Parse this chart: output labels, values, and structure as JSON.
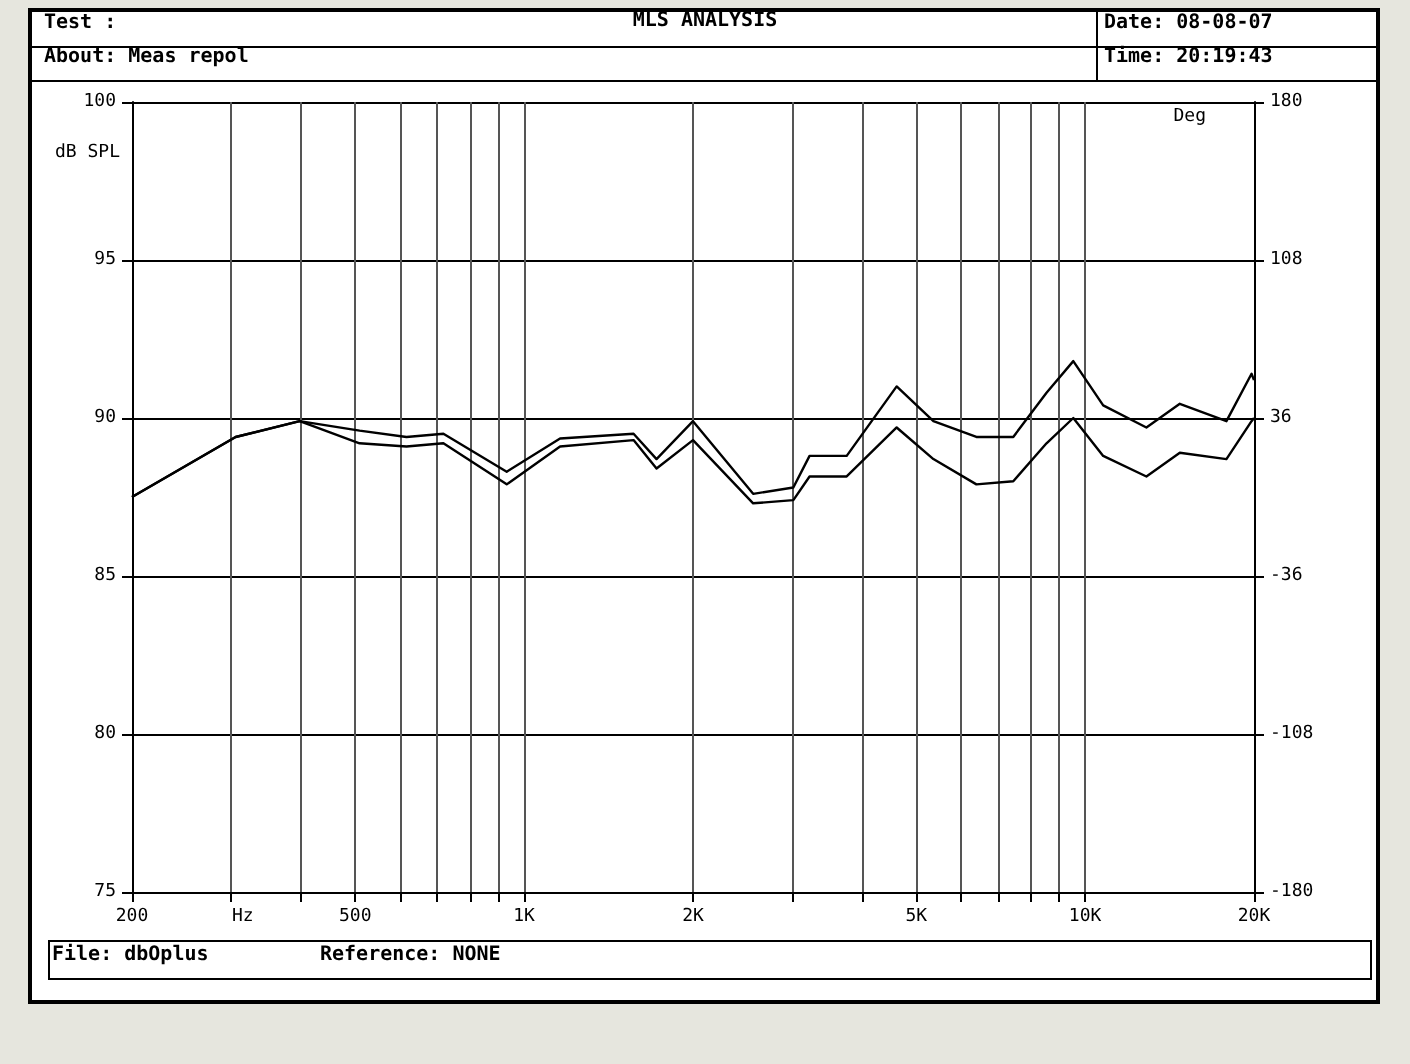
{
  "chart_data": {
    "type": "line",
    "title": "MLS ANALYSIS",
    "annotations": [
      "Test :",
      "About:   Meas repol",
      "Date: 08-08-07",
      "Time: 20:19:43",
      "File: dbOplus",
      "Reference: NONE"
    ],
    "ylabel": "dB SPL",
    "xlabel": "Hz",
    "y2label": "Deg",
    "x": [
      200,
      306,
      398,
      509,
      617,
      718,
      931,
      1159,
      1567,
      1722,
      2000,
      2560,
      3019,
      3227,
      3758,
      4614,
      5365,
      6400,
      7446,
      8535,
      9526,
      10770,
      12860,
      14750,
      17860,
      19800,
      20000
    ],
    "series": [
      {
        "color": "#000000",
        "values": [
          87.5,
          89.4,
          89.9,
          89.6,
          89.4,
          89.5,
          88.3,
          89.35,
          89.5,
          88.7,
          89.9,
          87.6,
          87.8,
          88.8,
          88.8,
          91.0,
          89.9,
          89.4,
          89.4,
          90.8,
          91.8,
          90.4,
          89.7,
          90.45,
          89.9,
          91.4,
          91.2
        ]
      },
      {
        "color": "#000000",
        "values": [
          87.5,
          89.4,
          89.9,
          89.2,
          89.1,
          89.2,
          87.9,
          89.1,
          89.3,
          88.4,
          89.3,
          87.3,
          87.4,
          88.15,
          88.15,
          89.7,
          88.7,
          87.9,
          88.0,
          89.2,
          90.0,
          88.8,
          88.15,
          88.9,
          88.7,
          89.9,
          90.0
        ]
      }
    ],
    "log": "x",
    "xlim": [
      200,
      20000
    ],
    "xticks": [
      {
        "value": 200,
        "label": "200"
      },
      {
        "value": 300,
        "label": null
      },
      {
        "value": 400,
        "label": null
      },
      {
        "value": 500,
        "label": "500"
      },
      {
        "value": 600,
        "label": null
      },
      {
        "value": 700,
        "label": null
      },
      {
        "value": 800,
        "label": null
      },
      {
        "value": 900,
        "label": null
      },
      {
        "value": 1000,
        "label": "1K"
      },
      {
        "value": 2000,
        "label": "2K"
      },
      {
        "value": 3000,
        "label": null
      },
      {
        "value": 4000,
        "label": null
      },
      {
        "value": 5000,
        "label": "5K"
      },
      {
        "value": 6000,
        "label": null
      },
      {
        "value": 7000,
        "label": null
      },
      {
        "value": 8000,
        "label": null
      },
      {
        "value": 9000,
        "label": null
      },
      {
        "value": 10000,
        "label": "10K"
      },
      {
        "value": 20000,
        "label": "20K"
      }
    ],
    "ylim": [
      75,
      100
    ],
    "yticks": [
      75,
      80,
      85,
      90,
      95,
      100
    ],
    "y2lim": [
      -180,
      180
    ],
    "y2ticks": [
      -180,
      -108,
      -36,
      36,
      108,
      180
    ],
    "grid": true,
    "marker": "none",
    "line_style": "solid"
  }
}
